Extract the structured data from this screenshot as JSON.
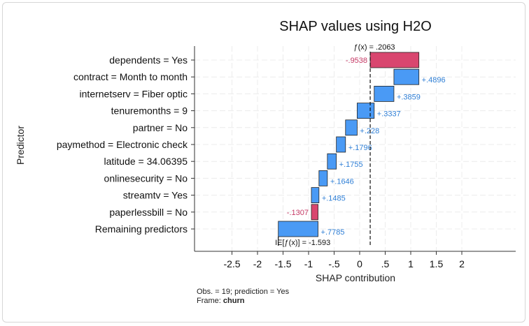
{
  "chart_data": {
    "type": "bar",
    "title": "SHAP values using H2O",
    "xlabel": "SHAP contribution",
    "ylabel": "Predictor",
    "xlim": [
      -2.5,
      2
    ],
    "xticks": [
      "-2.5",
      "-2",
      "-1.5",
      "-1",
      "-.5",
      "0",
      ".5",
      "1",
      "1.5",
      "2"
    ],
    "xtick_values": [
      -2.5,
      -2,
      -1.5,
      -1,
      -0.5,
      0,
      0.5,
      1,
      1.5,
      2
    ],
    "grid": true,
    "prediction_label": "ƒ(x) = .2063",
    "prediction_value": 0.2063,
    "baseline_label": "IE[ƒ(x)] = -1.593",
    "baseline_value": -1.593,
    "positive_color": "#4a9af5",
    "negative_color": "#d9466f",
    "categories": [
      "dependents = Yes",
      "contract = Month to month",
      "internetserv = Fiber optic",
      "tenuremonths = 9",
      "partner = No",
      "paymethod = Electronic check",
      "latitude = 34.06395",
      "onlinesecurity = No",
      "streamtv = Yes",
      "paperlessbill = No",
      "Remaining predictors"
    ],
    "values": [
      -0.9538,
      0.4896,
      0.3859,
      0.3337,
      0.228,
      0.1796,
      0.1755,
      0.1646,
      0.1485,
      -0.1307,
      0.7785
    ],
    "value_labels": [
      "-.9538",
      "+.4896",
      "+.3859",
      "+.3337",
      "+.228",
      "+.1796",
      "+.1755",
      "+.1646",
      "+.1485",
      "-.1307",
      "+.7785"
    ]
  },
  "notes": {
    "line1": "Obs. = 19; prediction = Yes",
    "frame_prefix": "Frame:",
    "frame_name": "churn"
  }
}
